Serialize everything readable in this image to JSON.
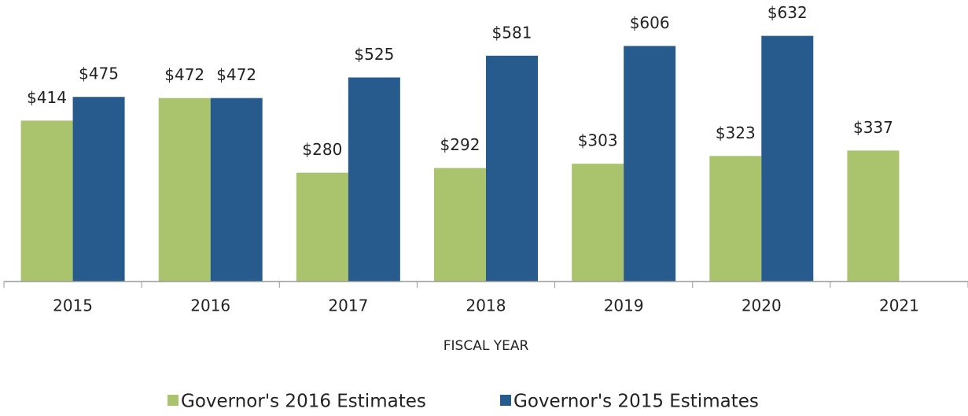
{
  "chart_data": {
    "type": "bar",
    "x_label": "FISCAL  YEAR",
    "categories": [
      "2015",
      "2016",
      "2017",
      "2018",
      "2019",
      "2020",
      "2021"
    ],
    "series": [
      {
        "name": "Governor's 2016 Estimates",
        "color": "#a9c46c",
        "values": [
          414,
          472,
          280,
          292,
          303,
          323,
          337
        ],
        "value_labels": [
          "$414",
          "$472",
          "$280",
          "$292",
          "$303",
          "$323",
          "$337"
        ]
      },
      {
        "name": "Governor's 2015 Estimates",
        "color": "#275b8e",
        "values": [
          475,
          472,
          525,
          581,
          606,
          632,
          null
        ],
        "value_labels": [
          "$475",
          "$472",
          "$525",
          "$581",
          "$606",
          "$632",
          null
        ]
      }
    ],
    "ylim": [
      0,
      700
    ],
    "legend": "bottom"
  }
}
